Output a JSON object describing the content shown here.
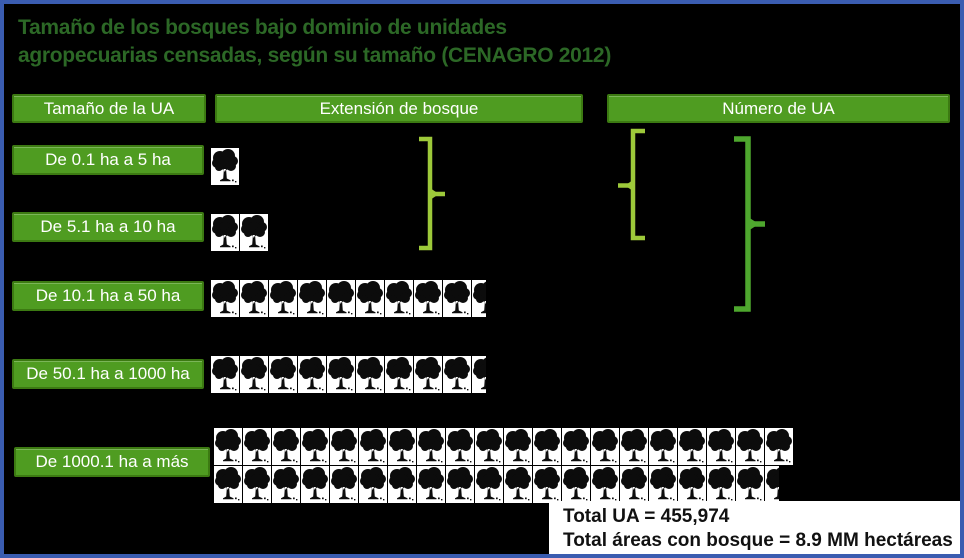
{
  "title": {
    "line1": "Tamaño de los bosques bajo dominio de unidades",
    "line2": "agropecuarias censadas, según su tamaño (CENAGRO 2012)"
  },
  "columns": {
    "ua_size": "Tamaño de la UA",
    "forest_extent": "Extensión de bosque",
    "ua_count": "Número de UA"
  },
  "chart_data": {
    "type": "pictograph",
    "icon": "tree-icon",
    "title": "Tamaño de los bosques bajo dominio de unidades agropecuarias censadas, según su tamaño (CENAGRO 2012)",
    "categories": [
      "De 0.1 ha a 5 ha",
      "De 5.1 ha a 10 ha",
      "De 10.1 ha a 50 ha",
      "De 50.1 ha a 1000 ha",
      "De 1000.1 ha a más"
    ],
    "series": [
      {
        "name": "Extensión de bosque",
        "unit": "tree icons",
        "values": [
          1,
          2,
          9.5,
          9.5,
          39.5
        ]
      }
    ],
    "tree_lines": [
      [
        1
      ],
      [
        2
      ],
      [
        9.5
      ],
      [
        9.5
      ],
      [
        20,
        19.5
      ]
    ],
    "annotations": [
      "brace grouping rows 1-2 under Extensión de bosque",
      "opening brace rows 1-2 under Número de UA",
      "closing brace rows 1-3 under Número de UA"
    ],
    "legend": "none",
    "grid": "off"
  },
  "totals": {
    "total_ua": "Total UA = 455,974",
    "total_bosque": "Total áreas con bosque = 8.9 MM hectáreas"
  },
  "colors": {
    "frame_blue": "#3a5cb0",
    "panel_green": "#4f9c21",
    "panel_border": "#3c7a12",
    "title_green": "#2c6826",
    "brace_light": "#9dc93a",
    "brace_dark": "#4ea72e",
    "tree_black": "#0c0c0c",
    "tree_bg": "#ffffff",
    "background": "#000000"
  }
}
